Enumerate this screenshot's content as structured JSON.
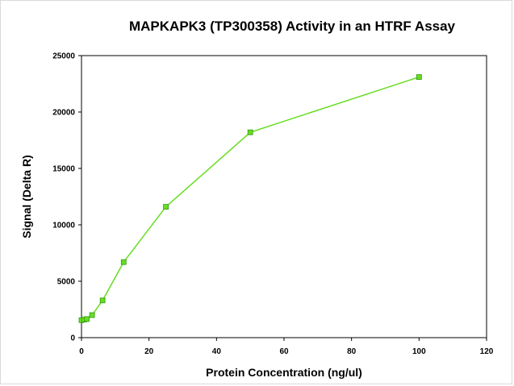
{
  "chart_data": {
    "type": "line",
    "title": "MAPKAPK3 (TP300358) Activity in an HTRF Assay",
    "xlabel": "Protein Concentration (ng/ul)",
    "ylabel": "Signal (Delta R)",
    "xlim": [
      0,
      120
    ],
    "ylim": [
      0,
      25000
    ],
    "xticks": [
      0,
      20,
      40,
      60,
      80,
      100,
      120
    ],
    "yticks": [
      0,
      5000,
      10000,
      15000,
      20000,
      25000
    ],
    "grid": false,
    "series": [
      {
        "color": "#66dd22",
        "marker": "square",
        "x": [
          0,
          0.78,
          1.56,
          3.13,
          6.25,
          12.5,
          25,
          50,
          100
        ],
        "y": [
          1550,
          1600,
          1650,
          2000,
          3300,
          6700,
          11600,
          18200,
          23100
        ]
      }
    ]
  }
}
